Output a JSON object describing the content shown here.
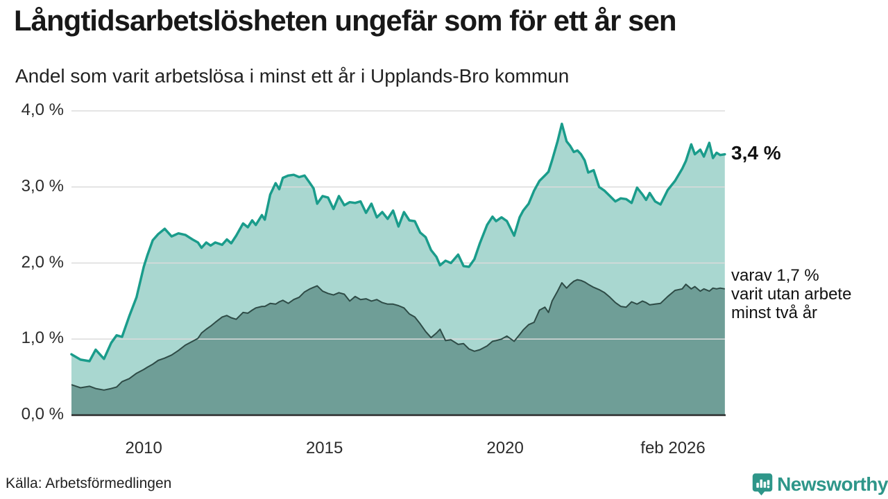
{
  "header": {
    "title": "Långtidsarbetslösheten ungefär som för ett år sen",
    "subtitle": "Andel som varit arbetslösa i minst ett år i Upplands-Bro kommun"
  },
  "annotations": {
    "latest_total": "3,4 %",
    "secondary_lines": [
      "varav 1,7 %",
      "varit utan arbete",
      "minst två år"
    ]
  },
  "footer": {
    "source": "Källa: Arbetsförmedlingen",
    "brand": "Newsworthy"
  },
  "colors": {
    "total_line": "#1A9C8B",
    "total_fill": "#A9D7D0",
    "two_year_line": "#2E4B46",
    "two_year_fill": "#6F9E97",
    "gridline": "#DBDBDB",
    "baseline": "#2B2B2B",
    "brand_teal": "#2E9689",
    "text": "#181818"
  },
  "chart_data": {
    "type": "area",
    "title": "Långtidsarbetslösheten ungefär som för ett år sen",
    "subtitle": "Andel som varit arbetslösa i minst ett år i Upplands-Bro kommun",
    "unit": "%",
    "grid": "horizontal",
    "legend": "none (direct end labels)",
    "x_range": [
      2008,
      2026.083
    ],
    "y_range": [
      0,
      4
    ],
    "y_ticks": [
      {
        "value": 4,
        "label": "4,0 %"
      },
      {
        "value": 3,
        "label": "3,0 %"
      },
      {
        "value": 2,
        "label": "2,0 %"
      },
      {
        "value": 1,
        "label": "1,0 %"
      },
      {
        "value": 0,
        "label": "0,0 %"
      }
    ],
    "x_ticks": [
      {
        "value": 2010,
        "label": "2010"
      },
      {
        "value": 2015,
        "label": "2015"
      },
      {
        "value": 2020,
        "label": "2020"
      },
      {
        "value": 2026.083,
        "label": "feb 2026"
      }
    ],
    "x": [
      2008.0,
      2008.25,
      2008.5,
      2008.67,
      2008.9,
      2009.1,
      2009.25,
      2009.4,
      2009.6,
      2009.8,
      2010.0,
      2010.1,
      2010.25,
      2010.4,
      2010.58,
      2010.77,
      2010.96,
      2011.15,
      2011.35,
      2011.5,
      2011.6,
      2011.73,
      2011.85,
      2011.98,
      2012.17,
      2012.3,
      2012.42,
      2012.56,
      2012.75,
      2012.88,
      2013.0,
      2013.1,
      2013.27,
      2013.35,
      2013.5,
      2013.65,
      2013.75,
      2013.85,
      2014.0,
      2014.15,
      2014.3,
      2014.45,
      2014.6,
      2014.7,
      2014.8,
      2014.95,
      2015.1,
      2015.25,
      2015.4,
      2015.55,
      2015.7,
      2015.85,
      2016.0,
      2016.15,
      2016.3,
      2016.45,
      2016.6,
      2016.75,
      2016.9,
      2017.05,
      2017.2,
      2017.35,
      2017.5,
      2017.65,
      2017.8,
      2017.95,
      2018.1,
      2018.2,
      2018.35,
      2018.5,
      2018.7,
      2018.85,
      2019.0,
      2019.15,
      2019.3,
      2019.5,
      2019.65,
      2019.75,
      2019.9,
      2020.05,
      2020.25,
      2020.4,
      2020.5,
      2020.65,
      2020.8,
      2020.95,
      2021.1,
      2021.2,
      2021.3,
      2021.45,
      2021.57,
      2021.7,
      2021.8,
      2021.9,
      2022.0,
      2022.1,
      2022.2,
      2022.3,
      2022.45,
      2022.6,
      2022.75,
      2022.9,
      2023.05,
      2023.2,
      2023.35,
      2023.5,
      2023.65,
      2023.8,
      2023.9,
      2024.0,
      2024.15,
      2024.3,
      2024.5,
      2024.7,
      2024.9,
      2025.0,
      2025.15,
      2025.25,
      2025.4,
      2025.5,
      2025.65,
      2025.75,
      2025.85,
      2025.95,
      2026.08
    ],
    "series": [
      {
        "name": "Andel arbetslösa minst ett år",
        "end_label": "3,4 %",
        "end_value": 3.4,
        "color": "#1A9C8B",
        "fill": "#A9D7D0",
        "values": [
          0.8,
          0.73,
          0.71,
          0.86,
          0.74,
          0.95,
          1.05,
          1.03,
          1.3,
          1.55,
          1.95,
          2.1,
          2.3,
          2.38,
          2.45,
          2.35,
          2.39,
          2.37,
          2.31,
          2.27,
          2.2,
          2.27,
          2.23,
          2.27,
          2.24,
          2.31,
          2.26,
          2.36,
          2.52,
          2.47,
          2.56,
          2.5,
          2.63,
          2.57,
          2.9,
          3.05,
          2.97,
          3.12,
          3.15,
          3.16,
          3.13,
          3.15,
          3.05,
          2.98,
          2.78,
          2.88,
          2.86,
          2.71,
          2.88,
          2.76,
          2.8,
          2.79,
          2.81,
          2.66,
          2.78,
          2.6,
          2.67,
          2.58,
          2.69,
          2.48,
          2.67,
          2.56,
          2.55,
          2.4,
          2.34,
          2.17,
          2.08,
          1.97,
          2.03,
          2.0,
          2.11,
          1.96,
          1.95,
          2.05,
          2.26,
          2.5,
          2.61,
          2.55,
          2.6,
          2.55,
          2.36,
          2.6,
          2.69,
          2.78,
          2.95,
          3.08,
          3.15,
          3.2,
          3.35,
          3.6,
          3.83,
          3.6,
          3.54,
          3.46,
          3.48,
          3.43,
          3.35,
          3.19,
          3.22,
          3.0,
          2.95,
          2.88,
          2.81,
          2.85,
          2.84,
          2.79,
          2.99,
          2.9,
          2.83,
          2.92,
          2.81,
          2.77,
          2.96,
          3.08,
          3.24,
          3.34,
          3.56,
          3.43,
          3.49,
          3.4,
          3.58,
          3.38,
          3.45,
          3.42,
          3.43
        ]
      },
      {
        "name": "Varav utan arbete minst två år",
        "end_label": "varav 1,7 % varit utan arbete minst två år",
        "end_value": 1.7,
        "color": "#2E4B46",
        "fill": "#6F9E97",
        "values": [
          0.4,
          0.36,
          0.38,
          0.35,
          0.33,
          0.35,
          0.37,
          0.44,
          0.48,
          0.55,
          0.6,
          0.63,
          0.67,
          0.72,
          0.75,
          0.79,
          0.85,
          0.92,
          0.97,
          1.01,
          1.08,
          1.13,
          1.17,
          1.22,
          1.29,
          1.31,
          1.28,
          1.26,
          1.35,
          1.34,
          1.38,
          1.41,
          1.43,
          1.43,
          1.47,
          1.46,
          1.49,
          1.51,
          1.47,
          1.52,
          1.55,
          1.62,
          1.66,
          1.68,
          1.7,
          1.63,
          1.6,
          1.58,
          1.61,
          1.59,
          1.5,
          1.56,
          1.52,
          1.53,
          1.5,
          1.52,
          1.48,
          1.46,
          1.46,
          1.44,
          1.41,
          1.33,
          1.29,
          1.2,
          1.1,
          1.02,
          1.08,
          1.13,
          0.98,
          0.99,
          0.93,
          0.94,
          0.87,
          0.84,
          0.86,
          0.91,
          0.97,
          0.98,
          1.0,
          1.04,
          0.97,
          1.06,
          1.12,
          1.19,
          1.22,
          1.38,
          1.42,
          1.35,
          1.5,
          1.63,
          1.74,
          1.67,
          1.72,
          1.76,
          1.78,
          1.77,
          1.75,
          1.72,
          1.68,
          1.65,
          1.61,
          1.55,
          1.48,
          1.43,
          1.42,
          1.49,
          1.46,
          1.5,
          1.48,
          1.45,
          1.46,
          1.47,
          1.56,
          1.64,
          1.66,
          1.72,
          1.66,
          1.69,
          1.63,
          1.66,
          1.63,
          1.67,
          1.66,
          1.67,
          1.66
        ]
      }
    ]
  }
}
